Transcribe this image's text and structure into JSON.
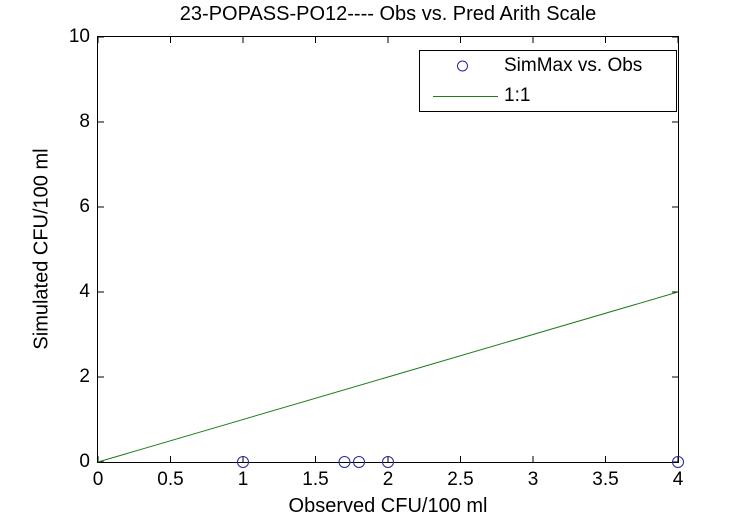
{
  "title": "23-POPASS-PO12---- Obs vs. Pred Arith Scale",
  "axes": {
    "xlabel": "Observed CFU/100 ml",
    "ylabel": "Simulated CFU/100 ml",
    "x_tick_labels": [
      "0",
      "0.5",
      "1",
      "1.5",
      "2",
      "2.5",
      "3",
      "3.5",
      "4"
    ],
    "y_tick_labels": [
      "0",
      "2",
      "4",
      "6",
      "8",
      "10"
    ]
  },
  "legend": {
    "position": "upper-right",
    "items": [
      {
        "label": "SimMax vs. Obs",
        "marker": "circle",
        "color": "#26269F"
      },
      {
        "label": "1:1",
        "marker": "line",
        "color": "#1F7D1F"
      }
    ]
  },
  "chart_data": {
    "type": "scatter",
    "title": "23-POPASS-PO12---- Obs vs. Pred Arith Scale",
    "xlabel": "Observed CFU/100 ml",
    "ylabel": "Simulated CFU/100 ml",
    "xlim": [
      0,
      4
    ],
    "ylim": [
      0,
      10
    ],
    "x_ticks": [
      0,
      0.5,
      1,
      1.5,
      2,
      2.5,
      3,
      3.5,
      4
    ],
    "y_ticks": [
      0,
      2,
      4,
      6,
      8,
      10
    ],
    "grid": false,
    "legend_position": "upper right",
    "series": [
      {
        "name": "SimMax vs. Obs",
        "type": "scatter",
        "marker": "open-circle",
        "color": "#26269F",
        "x": [
          1,
          1.7,
          1.8,
          2,
          4
        ],
        "y": [
          0,
          0,
          0,
          0,
          0
        ]
      },
      {
        "name": "1:1",
        "type": "line",
        "color": "#1F7D1F",
        "x": [
          0,
          4
        ],
        "y": [
          0,
          4
        ]
      }
    ]
  },
  "colors": {
    "background": "#FFFFFF",
    "axis": "#000000",
    "text": "#000000"
  }
}
